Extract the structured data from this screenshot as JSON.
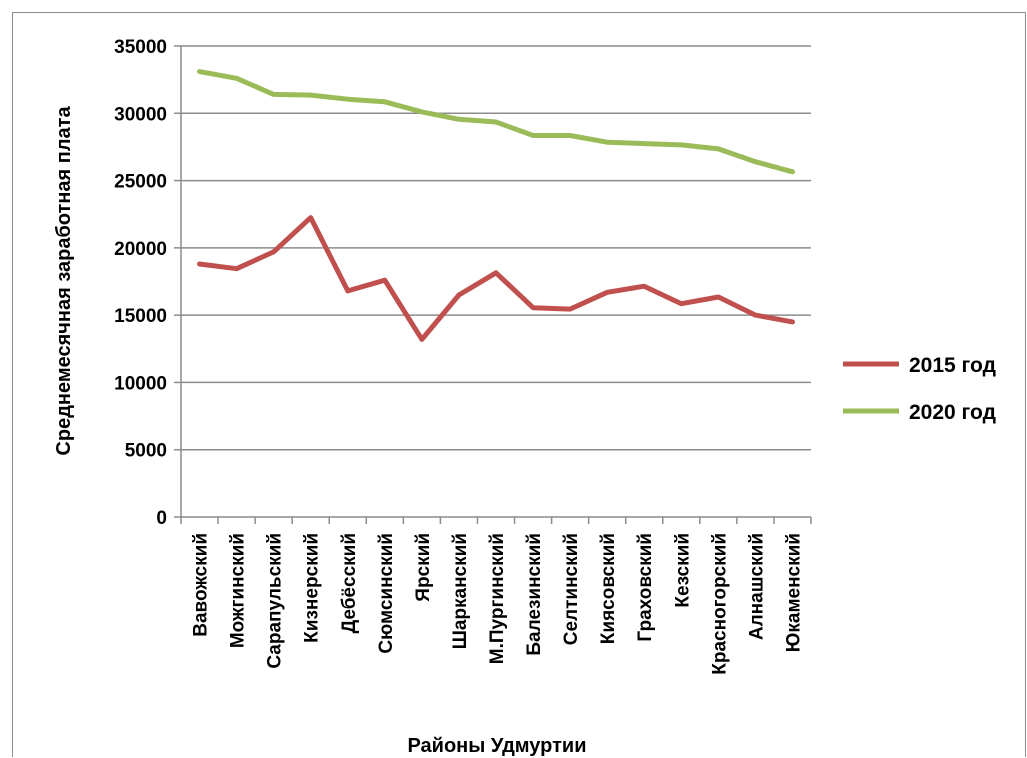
{
  "chart_data": {
    "type": "line",
    "title": "",
    "xlabel": "Районы Удмуртии",
    "ylabel": "Среднемесячная заработная плата",
    "ylim": [
      0,
      35000
    ],
    "yticks": [
      0,
      5000,
      10000,
      15000,
      20000,
      25000,
      30000,
      35000
    ],
    "grid": true,
    "legend_position": "right",
    "categories": [
      "Вавожский",
      "Можгинский",
      "Сарапульский",
      "Кизнерский",
      "Дебёсский",
      "Сюмсинский",
      "Ярский",
      "Шарканский",
      "М.Пургинский",
      "Балезинский",
      "Селтинский",
      "Киясовский",
      "Граховский",
      "Кезский",
      "Красногорский",
      "Алнашский",
      "Юкаменский"
    ],
    "series": [
      {
        "name": "2015 год",
        "color": "#c0504d",
        "values": [
          18800,
          18450,
          19700,
          22250,
          16800,
          17600,
          13200,
          16500,
          18150,
          15550,
          15450,
          16700,
          17150,
          15850,
          16350,
          15000,
          14500
        ]
      },
      {
        "name": "2020 год",
        "color": "#9bbb59",
        "values": [
          33100,
          32600,
          31400,
          31350,
          31050,
          30850,
          30100,
          29550,
          29350,
          28350,
          28350,
          27850,
          27750,
          27650,
          27350,
          26400,
          25650
        ]
      }
    ]
  }
}
